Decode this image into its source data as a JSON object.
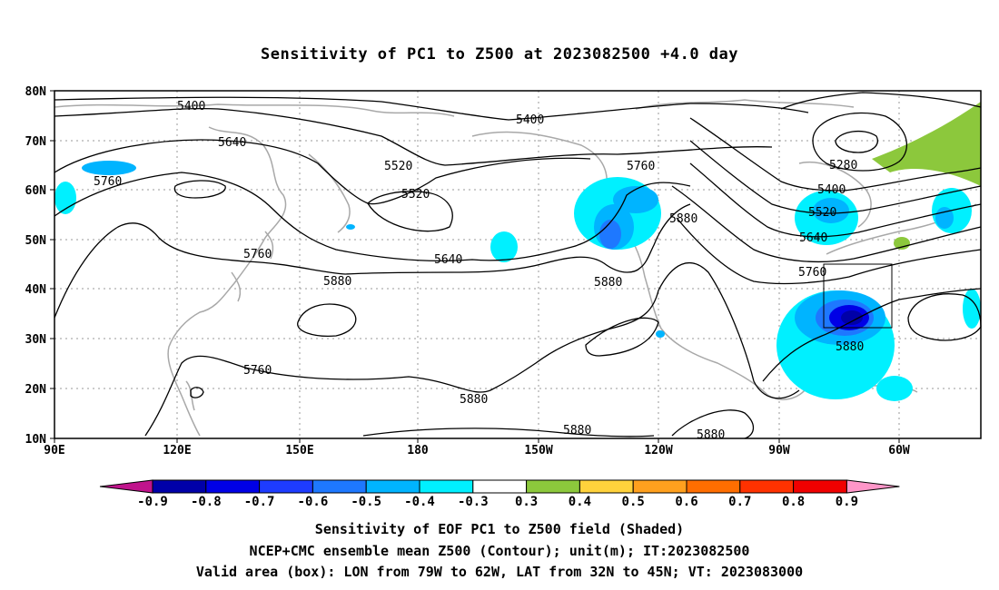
{
  "title": "Sensitivity of PC1 to Z500 at 2023082500 +4.0 day",
  "lat_labels": [
    "80N",
    "70N",
    "60N",
    "50N",
    "40N",
    "30N",
    "20N",
    "10N"
  ],
  "lon_labels": [
    "90E",
    "120E",
    "150E",
    "180",
    "150W",
    "120W",
    "90W",
    "60W"
  ],
  "contour_labels": [
    {
      "text": "5400"
    },
    {
      "text": "5400"
    },
    {
      "text": "5640"
    },
    {
      "text": "5520"
    },
    {
      "text": "5520"
    },
    {
      "text": "5760"
    },
    {
      "text": "5760"
    },
    {
      "text": "5880"
    },
    {
      "text": "5640"
    },
    {
      "text": "5760"
    },
    {
      "text": "5880"
    },
    {
      "text": "5880"
    },
    {
      "text": "5760"
    },
    {
      "text": "5280"
    },
    {
      "text": "5400"
    },
    {
      "text": "5520"
    },
    {
      "text": "5640"
    },
    {
      "text": "5760"
    },
    {
      "text": "5880"
    },
    {
      "text": "5880"
    },
    {
      "text": "5880"
    },
    {
      "text": "5880"
    }
  ],
  "colorbar": {
    "colors": [
      "#c0148c",
      "#0000a8",
      "#0000e6",
      "#1e3cff",
      "#1e78ff",
      "#00b4ff",
      "#00f0ff",
      "#ffffff",
      "#8cc83c",
      "#ffd23c",
      "#ffa01e",
      "#ff6e00",
      "#ff3200",
      "#f00000",
      "#ff96c8"
    ],
    "labels": [
      "-0.9",
      "-0.8",
      "-0.7",
      "-0.6",
      "-0.5",
      "-0.4",
      "-0.3",
      "0.3",
      "0.4",
      "0.5",
      "0.6",
      "0.7",
      "0.8",
      "0.9"
    ]
  },
  "caption": {
    "line1": "Sensitivity of EOF PC1 to Z500 field (Shaded)",
    "line2": "NCEP+CMC ensemble mean Z500 (Contour); unit(m); IT:2023082500",
    "line3": "Valid area (box): LON from 79W to 62W, LAT from 32N to 45N; VT: 2023083000"
  }
}
